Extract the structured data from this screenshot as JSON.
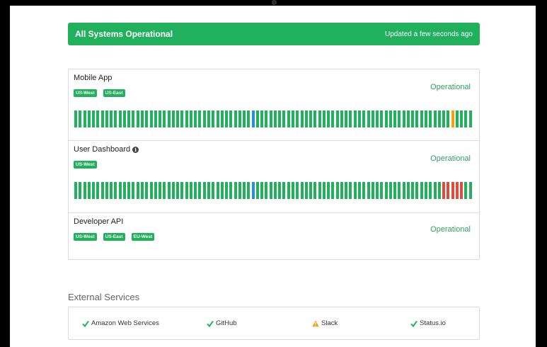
{
  "banner": {
    "title": "All Systems Operational",
    "updated": "Updated a few seconds ago",
    "color": "#21b15c"
  },
  "colors": {
    "operational": "#21b15c",
    "maintenance": "#2a8fd6",
    "degraded": "#f0a30a",
    "outage": "#e04b3c"
  },
  "components": [
    {
      "name": "Mobile App",
      "info_icon": false,
      "tags": [
        "US-West",
        "US-East"
      ],
      "status": "Operational",
      "history": {
        "count": 90,
        "special": [
          {
            "index": 40,
            "state": "maintenance"
          },
          {
            "index": 85,
            "state": "degraded"
          }
        ]
      }
    },
    {
      "name": "User Dashboard",
      "info_icon": true,
      "tags": [
        "US-West"
      ],
      "status": "Operational",
      "history": {
        "count": 90,
        "special": [
          {
            "index": 40,
            "state": "maintenance"
          },
          {
            "index": 83,
            "state": "outage"
          },
          {
            "index": 84,
            "state": "outage"
          },
          {
            "index": 85,
            "state": "outage"
          },
          {
            "index": 86,
            "state": "outage"
          },
          {
            "index": 87,
            "state": "outage"
          }
        ]
      }
    },
    {
      "name": "Developer API",
      "info_icon": false,
      "tags": [
        "US-West",
        "US-East",
        "EU-West"
      ],
      "status": "Operational",
      "history": null
    }
  ],
  "external": {
    "heading": "External Services",
    "services": [
      {
        "name": "Amazon Web Services",
        "icon": "check-icon",
        "state": "operational"
      },
      {
        "name": "GitHub",
        "icon": "check-icon",
        "state": "operational"
      },
      {
        "name": "Slack",
        "icon": "warning-icon",
        "state": "degraded"
      },
      {
        "name": "Status.io",
        "icon": "check-icon",
        "state": "operational"
      }
    ]
  }
}
